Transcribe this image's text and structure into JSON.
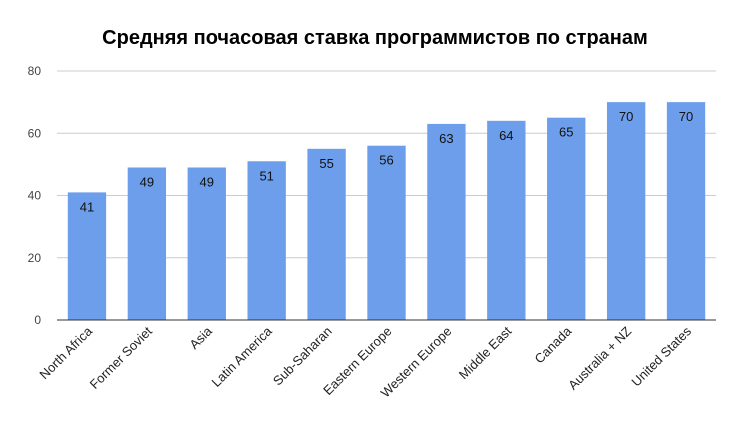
{
  "chart_data": {
    "type": "bar",
    "title": "Средняя почасовая ставка программистов по странам",
    "xlabel": "",
    "ylabel": "",
    "categories": [
      "North Africa",
      "Former Soviet",
      "Asia",
      "Latin America",
      "Sub-Saharan",
      "Eastern Europe",
      "Western Europe",
      "Middle East",
      "Canada",
      "Australia + NZ",
      "United States"
    ],
    "values": [
      41,
      49,
      49,
      51,
      55,
      56,
      63,
      64,
      65,
      70,
      70
    ],
    "data_labels": [
      "41",
      "49",
      "49",
      "51",
      "55",
      "56",
      "63",
      "64",
      "65",
      "70",
      "70"
    ],
    "ylim": [
      0,
      80
    ],
    "yticks": [
      0,
      20,
      40,
      60,
      80
    ],
    "ytick_labels": [
      "0",
      "20",
      "40",
      "60",
      "80"
    ],
    "grid": true,
    "legend": "none",
    "bar_color": "#6d9eeb"
  }
}
